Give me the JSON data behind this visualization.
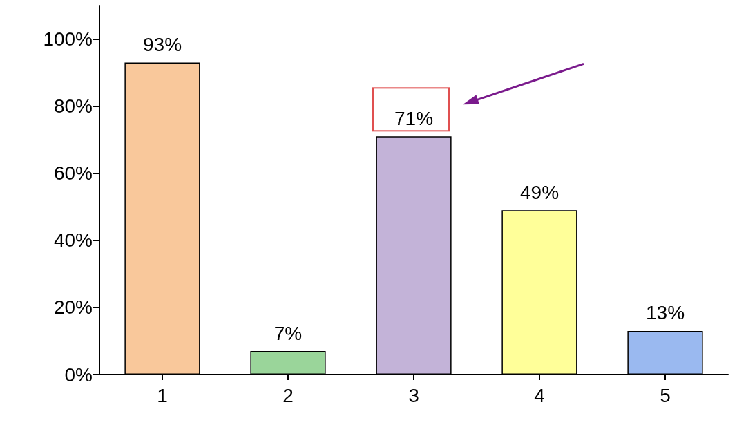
{
  "chart_data": {
    "type": "bar",
    "categories": [
      "1",
      "2",
      "3",
      "4",
      "5"
    ],
    "values": [
      93,
      7,
      71,
      49,
      13
    ],
    "colors": [
      "#f9c89b",
      "#9ad59a",
      "#c3b3d8",
      "#ffff99",
      "#9ab9f0"
    ],
    "value_labels": [
      "93%",
      "7%",
      "71%",
      "49%",
      "13%"
    ],
    "ylim": [
      0,
      110
    ],
    "yticks": [
      {
        "value": 0,
        "label": "0%"
      },
      {
        "value": 20,
        "label": "20%"
      },
      {
        "value": 40,
        "label": "40%"
      },
      {
        "value": 60,
        "label": "60%"
      },
      {
        "value": 80,
        "label": "80%"
      },
      {
        "value": 100,
        "label": "100%"
      }
    ],
    "grid": false
  }
}
